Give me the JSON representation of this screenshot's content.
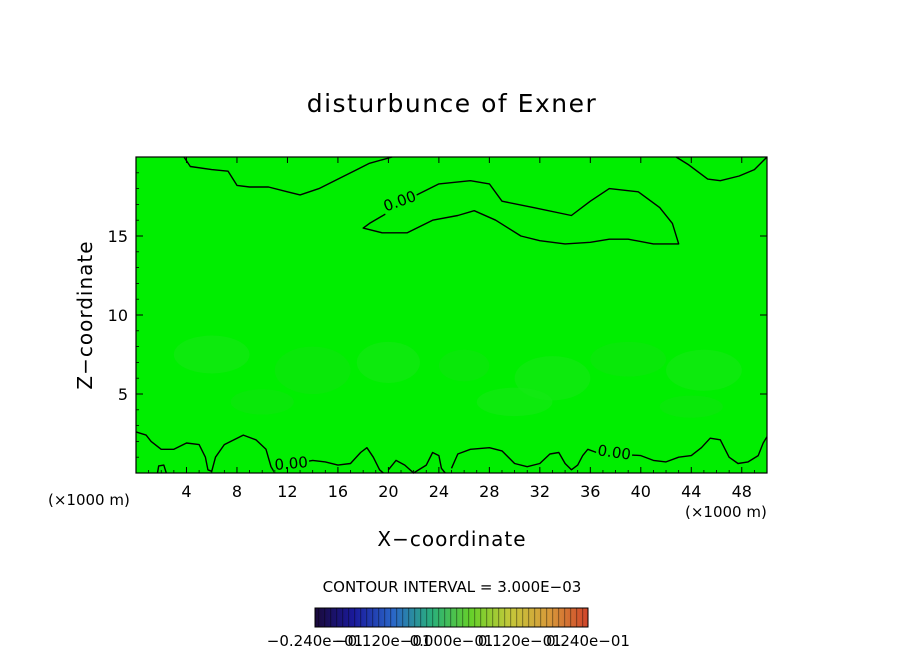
{
  "chart_data": {
    "type": "heatmap",
    "title": "disturbunce of Exner",
    "xlabel": "X−coordinate",
    "ylabel": "Z−coordinate",
    "x_unit_left": "(×1000 m)",
    "x_unit_right": "(×1000 m)",
    "xlim": [
      0,
      50
    ],
    "ylim": [
      0,
      20
    ],
    "x_ticks": [
      4,
      8,
      12,
      16,
      20,
      24,
      28,
      32,
      36,
      40,
      44,
      48
    ],
    "y_ticks": [
      5,
      10,
      15
    ],
    "field_color": "#00ee00",
    "contour_level_label": "0.00",
    "contours": [
      {
        "name": "upper-closed",
        "closed": true,
        "points": [
          [
            18.0,
            15.5
          ],
          [
            19.5,
            15.2
          ],
          [
            21.5,
            15.2
          ],
          [
            23.5,
            16.0
          ],
          [
            25.5,
            16.3
          ],
          [
            26.8,
            16.6
          ],
          [
            28.5,
            16.0
          ],
          [
            30.5,
            15.0
          ],
          [
            32.0,
            14.7
          ],
          [
            34.0,
            14.5
          ],
          [
            36.0,
            14.6
          ],
          [
            37.5,
            14.8
          ],
          [
            39.0,
            14.8
          ],
          [
            41.0,
            14.5
          ],
          [
            43.0,
            14.5
          ],
          [
            42.5,
            15.8
          ],
          [
            41.5,
            16.8
          ],
          [
            39.8,
            17.8
          ],
          [
            37.5,
            18.0
          ],
          [
            36.0,
            17.2
          ],
          [
            34.5,
            16.3
          ],
          [
            31.5,
            16.8
          ],
          [
            29.0,
            17.2
          ],
          [
            28.0,
            18.3
          ],
          [
            26.5,
            18.5
          ],
          [
            24.0,
            18.3
          ],
          [
            22.0,
            17.5
          ],
          [
            20.0,
            16.5
          ],
          [
            18.5,
            15.8
          ],
          [
            18.0,
            15.5
          ]
        ]
      },
      {
        "name": "top-boundary",
        "closed": false,
        "points": [
          [
            3.8,
            20.0
          ],
          [
            4.3,
            19.4
          ],
          [
            6.0,
            19.2
          ],
          [
            7.3,
            19.1
          ],
          [
            8.0,
            18.2
          ],
          [
            9.0,
            18.1
          ],
          [
            10.5,
            18.1
          ],
          [
            12.0,
            17.8
          ],
          [
            13.0,
            17.6
          ],
          [
            14.5,
            18.0
          ],
          [
            16.0,
            18.6
          ],
          [
            17.5,
            19.2
          ],
          [
            18.5,
            19.6
          ],
          [
            20.3,
            20.0
          ]
        ]
      },
      {
        "name": "top-right",
        "closed": false,
        "points": [
          [
            42.8,
            20.0
          ],
          [
            43.8,
            19.5
          ],
          [
            45.3,
            18.6
          ],
          [
            46.3,
            18.5
          ],
          [
            47.8,
            18.8
          ],
          [
            49.0,
            19.2
          ],
          [
            50.0,
            20.0
          ]
        ]
      },
      {
        "name": "bottom-boundary",
        "closed": false,
        "points": [
          [
            0.0,
            2.6
          ],
          [
            0.8,
            2.4
          ],
          [
            1.2,
            2.0
          ],
          [
            2.0,
            1.5
          ],
          [
            3.0,
            1.5
          ],
          [
            4.0,
            1.9
          ],
          [
            5.0,
            1.8
          ],
          [
            5.5,
            1.0
          ],
          [
            5.7,
            0.2
          ],
          [
            6.0,
            0.1
          ],
          [
            6.3,
            1.0
          ],
          [
            7.0,
            1.8
          ],
          [
            8.5,
            2.4
          ],
          [
            9.5,
            2.1
          ],
          [
            10.3,
            1.5
          ],
          [
            10.7,
            0.4
          ],
          [
            11.0,
            0.0
          ]
        ]
      },
      {
        "name": "bottom-mid",
        "closed": false,
        "points": [
          [
            12.6,
            0.6
          ],
          [
            14.0,
            0.8
          ],
          [
            15.0,
            0.7
          ],
          [
            16.0,
            0.5
          ],
          [
            17.0,
            0.6
          ],
          [
            17.8,
            1.3
          ],
          [
            18.3,
            1.6
          ],
          [
            18.8,
            1.0
          ],
          [
            19.3,
            0.2
          ],
          [
            19.6,
            0.0
          ]
        ]
      },
      {
        "name": "bottom-wiggle",
        "closed": false,
        "points": [
          [
            20.0,
            0.2
          ],
          [
            20.6,
            0.8
          ],
          [
            21.3,
            0.5
          ],
          [
            22.0,
            0.0
          ],
          [
            23.0,
            0.5
          ],
          [
            23.5,
            1.3
          ],
          [
            24.0,
            1.1
          ],
          [
            24.2,
            0.3
          ],
          [
            24.5,
            0.0
          ]
        ]
      },
      {
        "name": "bottom-right-chain",
        "closed": false,
        "points": [
          [
            25.0,
            0.3
          ],
          [
            25.5,
            1.2
          ],
          [
            26.5,
            1.5
          ],
          [
            28.0,
            1.6
          ],
          [
            29.0,
            1.4
          ],
          [
            30.0,
            0.6
          ],
          [
            31.0,
            0.4
          ],
          [
            32.0,
            0.6
          ],
          [
            32.8,
            1.2
          ],
          [
            33.5,
            1.3
          ],
          [
            34.0,
            0.6
          ],
          [
            34.5,
            0.2
          ],
          [
            35.0,
            0.5
          ],
          [
            35.4,
            1.1
          ],
          [
            35.8,
            1.5
          ],
          [
            36.5,
            1.3
          ],
          [
            38.0,
            1.2
          ],
          [
            40.0,
            1.1
          ],
          [
            41.0,
            0.8
          ],
          [
            42.0,
            0.7
          ],
          [
            43.0,
            1.0
          ],
          [
            44.0,
            1.1
          ],
          [
            44.8,
            1.6
          ],
          [
            45.5,
            2.2
          ],
          [
            46.3,
            2.1
          ],
          [
            47.0,
            1.0
          ],
          [
            47.7,
            0.6
          ],
          [
            48.5,
            0.7
          ],
          [
            49.3,
            1.1
          ],
          [
            49.7,
            1.9
          ],
          [
            50.0,
            2.3
          ]
        ]
      },
      {
        "name": "small-loop",
        "closed": false,
        "points": [
          [
            1.7,
            0.0
          ],
          [
            1.8,
            0.45
          ],
          [
            2.2,
            0.5
          ],
          [
            2.4,
            0.0
          ]
        ]
      }
    ],
    "contour_labels": [
      {
        "text": "0.00",
        "x": 20.9,
        "y": 17.2,
        "angle": -20
      },
      {
        "text": "0.00",
        "x": 12.3,
        "y": 0.6,
        "angle": -5
      },
      {
        "text": "0.00",
        "x": 37.9,
        "y": 1.3,
        "angle": 8
      }
    ],
    "footer": {
      "contour_interval": "CONTOUR INTERVAL = 3.000E−03"
    },
    "colorbar": {
      "tick_labels": [
        "−0.240",
        "−0.120",
        "0.000",
        "0.120",
        "0.240"
      ],
      "tick_suffix": "e−01",
      "stops": [
        "#1a0a3a",
        "#1a1a9c",
        "#2a66c8",
        "#2ab07a",
        "#66d02a",
        "#c4c83a",
        "#d89a3a",
        "#d0442a"
      ]
    }
  }
}
